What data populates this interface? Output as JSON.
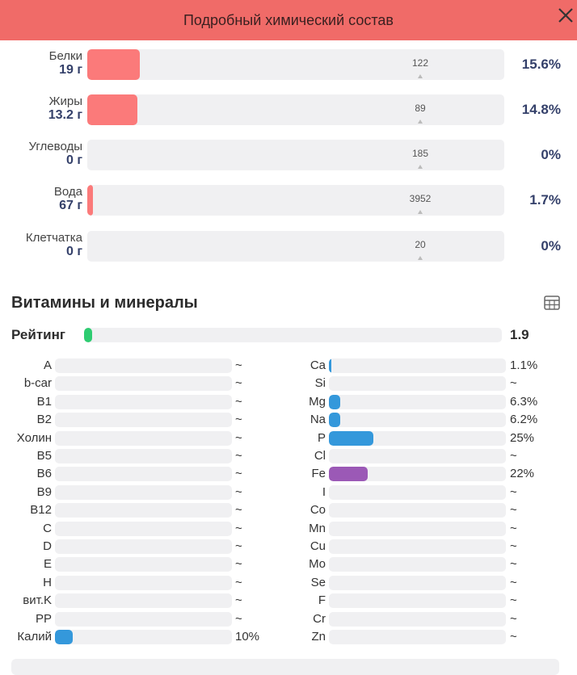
{
  "header": {
    "title": "Подробный химический состав"
  },
  "colors": {
    "header_bg": "#f06b68",
    "macro_fill": "#fb7a7a",
    "rating_fill": "#2ecc71",
    "mineral_fill": "#3498db",
    "iron_fill": "#9b59b6"
  },
  "macros": [
    {
      "name": "Белки",
      "amount": "19 г",
      "norm": "122",
      "percent": "15.6%",
      "fill": 0.126
    },
    {
      "name": "Жиры",
      "amount": "13.2 г",
      "norm": "89",
      "percent": "14.8%",
      "fill": 0.12
    },
    {
      "name": "Углеводы",
      "amount": "0 г",
      "norm": "185",
      "percent": "0%",
      "fill": 0
    },
    {
      "name": "Вода",
      "amount": "67 г",
      "norm": "3952",
      "percent": "1.7%",
      "fill": 0.014
    },
    {
      "name": "Клетчатка",
      "amount": "0 г",
      "norm": "20",
      "percent": "0%",
      "fill": 0
    }
  ],
  "vitamins_section": {
    "title": "Витамины и минералы",
    "icon": "table-icon"
  },
  "rating": {
    "label": "Рейтинг",
    "value": "1.9",
    "fill": 0.019
  },
  "vitamins": [
    {
      "name": "A",
      "value": "~",
      "fill": 0
    },
    {
      "name": "b-car",
      "value": "~",
      "fill": 0
    },
    {
      "name": "B1",
      "value": "~",
      "fill": 0
    },
    {
      "name": "B2",
      "value": "~",
      "fill": 0
    },
    {
      "name": "Холин",
      "value": "~",
      "fill": 0
    },
    {
      "name": "B5",
      "value": "~",
      "fill": 0
    },
    {
      "name": "B6",
      "value": "~",
      "fill": 0
    },
    {
      "name": "B9",
      "value": "~",
      "fill": 0
    },
    {
      "name": "B12",
      "value": "~",
      "fill": 0
    },
    {
      "name": "C",
      "value": "~",
      "fill": 0
    },
    {
      "name": "D",
      "value": "~",
      "fill": 0
    },
    {
      "name": "E",
      "value": "~",
      "fill": 0
    },
    {
      "name": "H",
      "value": "~",
      "fill": 0
    },
    {
      "name": "вит.K",
      "value": "~",
      "fill": 0
    },
    {
      "name": "PP",
      "value": "~",
      "fill": 0
    },
    {
      "name": "Калий",
      "value": "10%",
      "fill": 0.1,
      "color": "#3498db"
    }
  ],
  "minerals": [
    {
      "name": "Ca",
      "value": "1.1%",
      "fill": 0.011,
      "color": "#3498db"
    },
    {
      "name": "Si",
      "value": "~",
      "fill": 0
    },
    {
      "name": "Mg",
      "value": "6.3%",
      "fill": 0.063,
      "color": "#3498db"
    },
    {
      "name": "Na",
      "value": "6.2%",
      "fill": 0.062,
      "color": "#3498db"
    },
    {
      "name": "P",
      "value": "25%",
      "fill": 0.25,
      "color": "#3498db"
    },
    {
      "name": "Cl",
      "value": "~",
      "fill": 0
    },
    {
      "name": "Fe",
      "value": "22%",
      "fill": 0.22,
      "color": "#9b59b6"
    },
    {
      "name": "I",
      "value": "~",
      "fill": 0
    },
    {
      "name": "Co",
      "value": "~",
      "fill": 0
    },
    {
      "name": "Mn",
      "value": "~",
      "fill": 0
    },
    {
      "name": "Cu",
      "value": "~",
      "fill": 0
    },
    {
      "name": "Mo",
      "value": "~",
      "fill": 0
    },
    {
      "name": "Se",
      "value": "~",
      "fill": 0
    },
    {
      "name": "F",
      "value": "~",
      "fill": 0
    },
    {
      "name": "Cr",
      "value": "~",
      "fill": 0
    },
    {
      "name": "Zn",
      "value": "~",
      "fill": 0
    }
  ]
}
